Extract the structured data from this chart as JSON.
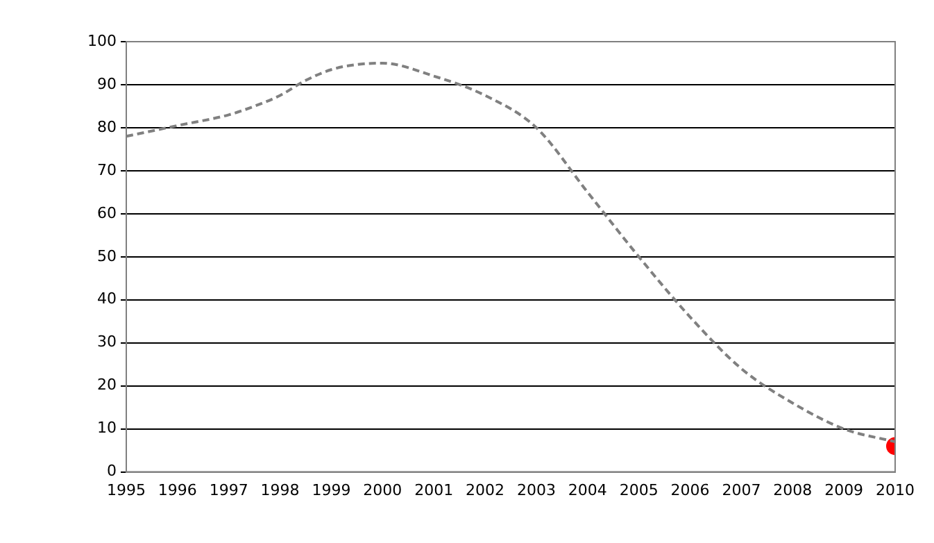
{
  "chart_data": {
    "type": "line",
    "x": [
      1995,
      1996,
      1997,
      1997.5,
      1998,
      1998.5,
      1999,
      1999.5,
      2000,
      2001,
      2002,
      2003,
      2004,
      2005,
      2006,
      2007,
      2008,
      2009,
      2010
    ],
    "series": [
      {
        "color": "#808080",
        "line_style": "dashed",
        "marker": "none",
        "values": [
          78,
          80.5,
          83,
          85,
          87.5,
          91,
          93.5,
          94.7,
          95,
          92,
          87.5,
          80,
          65,
          50,
          36,
          24,
          16,
          10,
          7
        ]
      },
      {
        "type": "scatter",
        "x": [
          2010
        ],
        "color": "#ff0000",
        "marker": "circle",
        "values": [
          6
        ]
      }
    ],
    "xlim": [
      1995,
      2010
    ],
    "xticks": [
      1995,
      1996,
      1997,
      1998,
      1999,
      2000,
      2001,
      2002,
      2003,
      2004,
      2005,
      2006,
      2007,
      2008,
      2009,
      2010
    ],
    "ylim": [
      0,
      100
    ],
    "yticks": [
      0,
      10,
      20,
      30,
      40,
      50,
      60,
      70,
      80,
      90,
      100
    ],
    "grid": "y",
    "legend": false
  }
}
